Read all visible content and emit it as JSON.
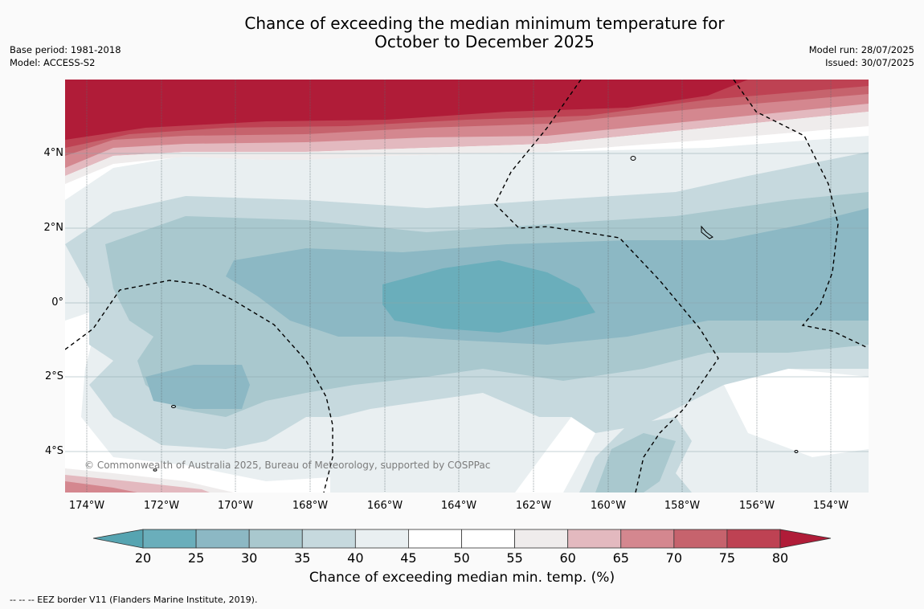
{
  "title": {
    "line1": "Chance of exceeding the median minimum temperature for",
    "line2": "October to December 2025"
  },
  "meta": {
    "base_period": "Base period: 1981-2018",
    "model": "Model: ACCESS-S2",
    "model_run": "Model run: 28/07/2025",
    "issued": "Issued: 30/07/2025"
  },
  "map": {
    "latitude_labels": [
      "4°N",
      "2°N",
      "0°",
      "2°S",
      "4°S"
    ],
    "longitude_labels": [
      "174°W",
      "172°W",
      "170°W",
      "168°W",
      "166°W",
      "164°W",
      "162°W",
      "160°W",
      "158°W",
      "156°W",
      "154°W"
    ],
    "copyright": "© Commonwealth of Australia 2025, Bureau of Meteorology, supported by COSPPac"
  },
  "colorbar": {
    "ticks": [
      "20",
      "25",
      "30",
      "35",
      "40",
      "45",
      "50",
      "55",
      "60",
      "65",
      "70",
      "75",
      "80"
    ],
    "colors": [
      "#6aaebb",
      "#8cb8c4",
      "#a9c8ce",
      "#c6d9de",
      "#e9eff1",
      "#ffffff",
      "#ffffff",
      "#efecec",
      "#e3b9bf",
      "#d4878f",
      "#c6636d",
      "#be4253"
    ],
    "under_color": "#56a4b1",
    "over_color": "#b01c38",
    "title": "Chance of exceeding median min. temp. (%)"
  },
  "legend_note": "--  --  -- EEZ border V11 (Flanders Marine Institute, 2019)."
}
